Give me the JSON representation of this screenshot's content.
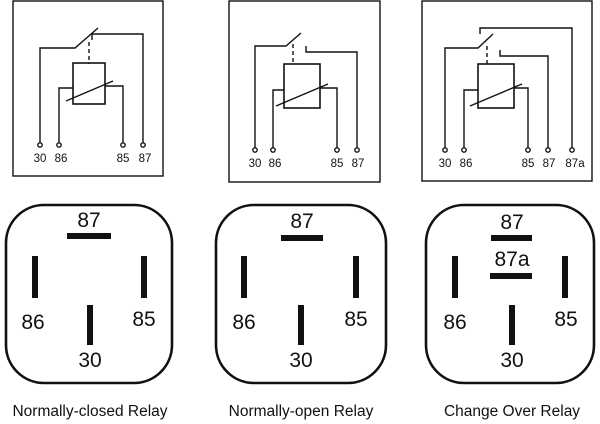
{
  "relays": [
    {
      "id": "normally-closed",
      "caption": "Normally-closed Relay",
      "schematic_pins": [
        "30",
        "86",
        "85",
        "87"
      ],
      "footprint_labels": {
        "top": "87",
        "left": "86",
        "right": "85",
        "bottom": "30"
      }
    },
    {
      "id": "normally-open",
      "caption": "Normally-open Relay",
      "schematic_pins": [
        "30",
        "86",
        "85",
        "87"
      ],
      "footprint_labels": {
        "top": "87",
        "left": "86",
        "right": "85",
        "bottom": "30"
      }
    },
    {
      "id": "change-over",
      "caption": "Change Over Relay",
      "schematic_pins": [
        "30",
        "86",
        "85",
        "87",
        "87a"
      ],
      "footprint_labels": {
        "top": "87",
        "middle": "87a",
        "left": "86",
        "right": "85",
        "bottom": "30"
      }
    }
  ],
  "colors": {
    "line": "#111111",
    "background": "#ffffff"
  }
}
